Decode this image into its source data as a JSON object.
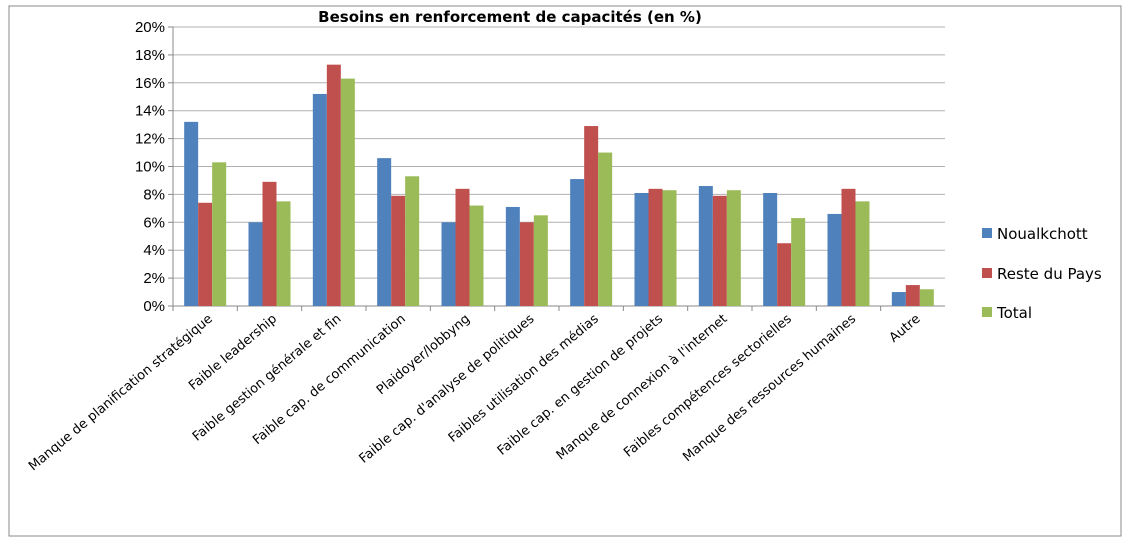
{
  "chart_data": {
    "type": "bar",
    "title": "Besoins en renforcement de capacités (en %)",
    "categories": [
      "Manque de planification stratégique",
      "Faible leadership",
      "Faible gestion générale et fin",
      "Faible cap. de communication",
      "Plaidoyer/lobbyng",
      "Faible cap. d'analyse de politiques",
      "Faibles utilisation des médias",
      "Faible cap. en gestion de projets",
      "Manque de connexion à l'internet",
      "Faibles compétences sectorielles",
      "Manque des ressources humaines",
      "Autre"
    ],
    "series": [
      {
        "name": "Noualkchott",
        "color": "#4f81bd",
        "values": [
          13.2,
          6.0,
          15.2,
          10.6,
          6.0,
          7.1,
          9.1,
          8.1,
          8.6,
          8.1,
          6.6,
          1.0
        ]
      },
      {
        "name": "Reste du Pays",
        "color": "#c0504d",
        "values": [
          7.4,
          8.9,
          17.3,
          7.9,
          8.4,
          6.0,
          12.9,
          8.4,
          7.9,
          4.5,
          8.4,
          1.5
        ]
      },
      {
        "name": "Total",
        "color": "#9bbb59",
        "values": [
          10.3,
          7.5,
          16.3,
          9.3,
          7.2,
          6.5,
          11.0,
          8.3,
          8.3,
          6.3,
          7.5,
          1.2
        ]
      }
    ],
    "ylim": [
      0,
      20
    ],
    "yticks": [
      {
        "value": 0,
        "label": "0%"
      },
      {
        "value": 2,
        "label": "2%"
      },
      {
        "value": 4,
        "label": "4%"
      },
      {
        "value": 6,
        "label": "6%"
      },
      {
        "value": 8,
        "label": "8%"
      },
      {
        "value": 10,
        "label": "10%"
      },
      {
        "value": 12,
        "label": "12%"
      },
      {
        "value": 14,
        "label": "14%"
      },
      {
        "value": 16,
        "label": "16%"
      },
      {
        "value": 18,
        "label": "18%"
      },
      {
        "value": 20,
        "label": "20%"
      }
    ],
    "grid": true,
    "legend": "right"
  }
}
